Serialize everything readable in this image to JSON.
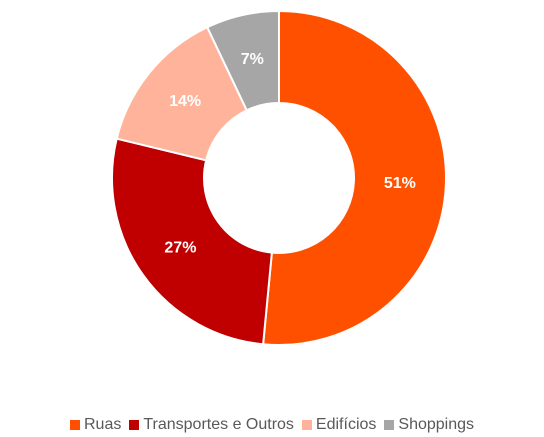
{
  "chart_data": {
    "type": "donut",
    "categories": [
      "Ruas",
      "Transportes e Outros",
      "Edifícios",
      "Shoppings"
    ],
    "values": [
      51,
      27,
      14,
      7
    ],
    "value_labels": [
      "51%",
      "27%",
      "14%",
      "7%"
    ],
    "colors": [
      "#FF5000",
      "#C00000",
      "#FFB39B",
      "#A6A6A6"
    ]
  }
}
